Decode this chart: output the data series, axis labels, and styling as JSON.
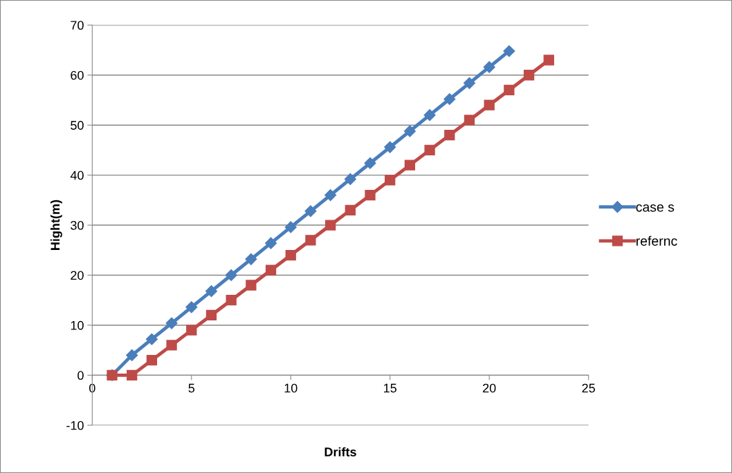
{
  "chart_data": {
    "type": "line",
    "xlabel": "Drifts",
    "ylabel": "Hight(m)",
    "xlim": [
      0,
      25
    ],
    "xticks": [
      0,
      5,
      10,
      15,
      20,
      25
    ],
    "ylim": [
      -10,
      70
    ],
    "yticks": [
      -10,
      0,
      10,
      20,
      30,
      40,
      50,
      60,
      70
    ],
    "grid": "y",
    "legend": "right",
    "series": [
      {
        "name": "case s",
        "color": "#4a7ebb",
        "marker": "diamond",
        "x": [
          1,
          2,
          3,
          4,
          5,
          6,
          7,
          8,
          9,
          10,
          11,
          12,
          13,
          14,
          15,
          16,
          17,
          18,
          19,
          20,
          21
        ],
        "values": [
          0,
          4,
          7.2,
          10.4,
          13.6,
          16.8,
          20,
          23.2,
          26.4,
          29.6,
          32.8,
          36,
          39.2,
          42.4,
          45.6,
          48.8,
          52,
          55.2,
          58.4,
          61.6,
          64.8
        ]
      },
      {
        "name": "refernc",
        "color": "#be4b48",
        "marker": "square",
        "x": [
          1,
          2,
          3,
          4,
          5,
          6,
          7,
          8,
          9,
          10,
          11,
          12,
          13,
          14,
          15,
          16,
          17,
          18,
          19,
          20,
          21,
          22,
          23
        ],
        "values": [
          0,
          0,
          3,
          6,
          9,
          12,
          15,
          18,
          21,
          24,
          27,
          30,
          33,
          36,
          39,
          42,
          45,
          48,
          51,
          54,
          57,
          60,
          63
        ]
      }
    ]
  }
}
